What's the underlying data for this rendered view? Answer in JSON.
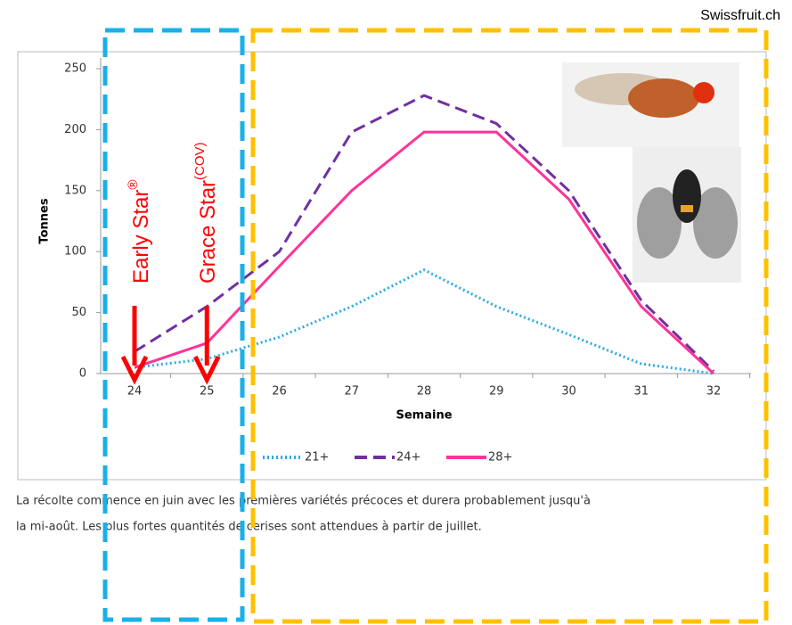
{
  "source": "Swissfruit.ch",
  "chart_data": {
    "type": "line",
    "x_label": "Semaine",
    "y_label": "Tonnes",
    "categories": [
      "24",
      "25",
      "26",
      "27",
      "28",
      "29",
      "30",
      "31",
      "32"
    ],
    "ylim": [
      0,
      250
    ],
    "yticks": [
      0,
      50,
      100,
      150,
      200,
      250
    ],
    "grid": false,
    "series": [
      {
        "name": "21+",
        "color": "#29abe2",
        "style": "dotted",
        "values": [
          5,
          12,
          30,
          55,
          85,
          55,
          32,
          8,
          0
        ]
      },
      {
        "name": "24+",
        "color": "#7030a0",
        "style": "dashed",
        "values": [
          18,
          55,
          100,
          198,
          228,
          205,
          150,
          60,
          2
        ]
      },
      {
        "name": "28+",
        "color": "#ff3399",
        "style": "solid",
        "values": [
          5,
          25,
          88,
          150,
          198,
          198,
          143,
          55,
          0
        ]
      }
    ],
    "annotations": [
      {
        "text": "Early Star",
        "sup": "®"
      },
      {
        "text": "Grace Star",
        "sup": "(COV)"
      }
    ]
  },
  "caption": [
    "La récolte commence en juin avec les premières variétés précoces et durera probablement jusqu'à",
    "la mi-août. Les plus fortes quantités de cerises sont attendues à partir de juillet."
  ]
}
